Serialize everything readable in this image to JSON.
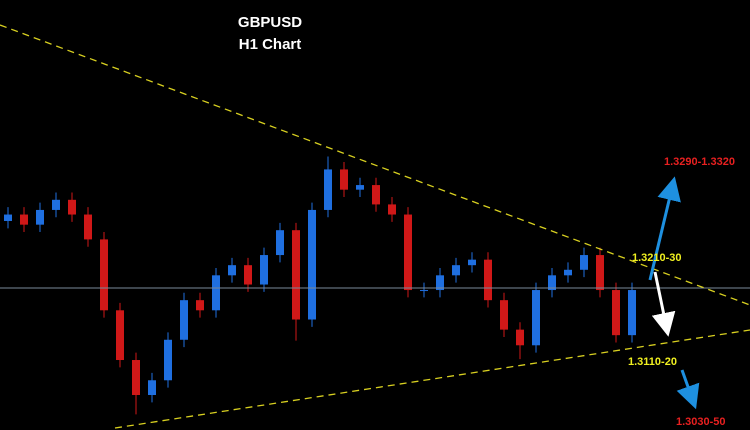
{
  "chart_data": {
    "type": "candlestick",
    "title": "GBPUSD",
    "subtitle": "H1 Chart",
    "annotations": [
      "1.3290-1.3320",
      "1.3210-30",
      "1.3110-20",
      "1.3030-50"
    ],
    "ylim": [
      1.3023,
      1.349
    ],
    "up_color": "#1f6fe0",
    "down_color": "#d01818",
    "open": [
      1.325,
      1.3257,
      1.3246,
      1.3262,
      1.3273,
      1.3257,
      1.323,
      1.3153,
      1.3099,
      1.3061,
      1.3077,
      1.3121,
      1.3164,
      1.3153,
      1.3191,
      1.3202,
      1.3181,
      1.3213,
      1.324,
      1.3143,
      1.3262,
      1.3306,
      1.3284,
      1.3289,
      1.3268,
      1.3257,
      1.3175,
      1.3175,
      1.3191,
      1.3202,
      1.3208,
      1.3164,
      1.3132,
      1.3115,
      1.3175,
      1.3191,
      1.3197,
      1.3213,
      1.3175,
      1.3126
    ],
    "high": [
      1.3265,
      1.3265,
      1.327,
      1.3281,
      1.3281,
      1.3265,
      1.3238,
      1.3161,
      1.3107,
      1.3085,
      1.3129,
      1.3172,
      1.3172,
      1.3199,
      1.321,
      1.321,
      1.3221,
      1.3248,
      1.3248,
      1.327,
      1.332,
      1.3314,
      1.3297,
      1.3297,
      1.3276,
      1.3265,
      1.3183,
      1.3199,
      1.321,
      1.3216,
      1.3216,
      1.3172,
      1.314,
      1.3183,
      1.3199,
      1.3205,
      1.3221,
      1.3221,
      1.3183,
      1.3183
    ],
    "low": [
      1.3242,
      1.3238,
      1.3238,
      1.3254,
      1.3249,
      1.3222,
      1.3145,
      1.3091,
      1.304,
      1.3053,
      1.3069,
      1.3113,
      1.3145,
      1.3145,
      1.3183,
      1.3173,
      1.3173,
      1.3205,
      1.312,
      1.3135,
      1.3254,
      1.3276,
      1.3276,
      1.326,
      1.3249,
      1.3167,
      1.3167,
      1.3167,
      1.3183,
      1.3194,
      1.3156,
      1.3124,
      1.31,
      1.3107,
      1.3167,
      1.3183,
      1.3189,
      1.3167,
      1.3118,
      1.3118
    ],
    "close": [
      1.3257,
      1.3246,
      1.3262,
      1.3273,
      1.3257,
      1.323,
      1.3153,
      1.3099,
      1.3061,
      1.3077,
      1.3121,
      1.3164,
      1.3153,
      1.3191,
      1.3202,
      1.3181,
      1.3213,
      1.324,
      1.3143,
      1.3262,
      1.3306,
      1.3284,
      1.3289,
      1.3268,
      1.3257,
      1.3175,
      1.3175,
      1.3191,
      1.3202,
      1.3208,
      1.3164,
      1.3132,
      1.3115,
      1.3175,
      1.3191,
      1.3197,
      1.3213,
      1.3175,
      1.3126,
      1.3175
    ]
  }
}
